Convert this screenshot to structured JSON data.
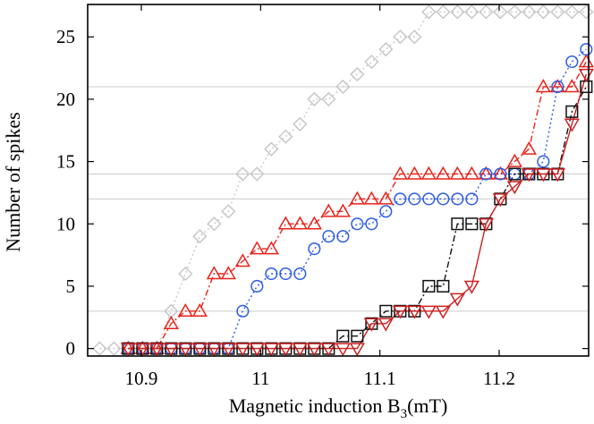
{
  "chart_data": {
    "type": "line",
    "title": "",
    "xlabel": "Magnetic induction B",
    "xlabel_sub": "3",
    "xlabel_unit": "(mT)",
    "ylabel": "Number of spikes",
    "xlim": [
      10.855,
      11.275
    ],
    "ylim": [
      -0.6,
      27.6
    ],
    "xticks": [
      10.9,
      11,
      11.1,
      11.2
    ],
    "xtick_labels": [
      "10.9",
      "11",
      "11.1",
      "11.2"
    ],
    "yticks": [
      0,
      5,
      10,
      15,
      20,
      25
    ],
    "ytick_labels": [
      "0",
      "5",
      "10",
      "15",
      "20",
      "25"
    ],
    "hgrid": [
      3,
      12,
      14,
      21
    ],
    "series": [
      {
        "name": "diamonds",
        "marker": "diamond",
        "color": "#c8c8c8",
        "dash": "2,3",
        "x": [
          10.865,
          10.877,
          10.889,
          10.901,
          10.913,
          10.925,
          10.937,
          10.949,
          10.961,
          10.973,
          10.985,
          10.997,
          11.009,
          11.021,
          11.033,
          11.045,
          11.057,
          11.069,
          11.081,
          11.093,
          11.105,
          11.117,
          11.129,
          11.141,
          11.153,
          11.165,
          11.177,
          11.189,
          11.201,
          11.213,
          11.225,
          11.237,
          11.249,
          11.261,
          11.273
        ],
        "y": [
          0,
          0,
          0,
          0,
          0,
          3,
          6,
          9,
          10,
          11,
          14,
          14,
          16,
          17,
          18,
          20,
          20,
          21,
          22,
          23,
          24,
          25,
          25,
          27,
          27,
          27,
          27,
          27,
          27,
          27,
          27,
          27,
          27,
          27,
          27
        ]
      },
      {
        "name": "up-triangles",
        "marker": "triangle-up",
        "color": "#e8231a",
        "dash": "7,3,2,3",
        "x": [
          10.889,
          10.901,
          10.913,
          10.925,
          10.937,
          10.949,
          10.961,
          10.973,
          10.985,
          10.997,
          11.009,
          11.021,
          11.033,
          11.045,
          11.057,
          11.069,
          11.081,
          11.093,
          11.105,
          11.117,
          11.129,
          11.141,
          11.153,
          11.165,
          11.177,
          11.189,
          11.201,
          11.213,
          11.225,
          11.237,
          11.249,
          11.261,
          11.273
        ],
        "y": [
          0,
          0,
          0,
          2,
          3,
          3,
          6,
          6,
          7,
          8,
          8,
          10,
          10,
          10,
          11,
          11,
          12,
          12,
          12,
          14,
          14,
          14,
          14,
          14,
          14,
          14,
          14,
          15,
          16,
          21,
          21,
          21,
          23
        ]
      },
      {
        "name": "circles",
        "marker": "circle",
        "color": "#2d5be3",
        "dash": "2,3",
        "x": [
          10.889,
          10.901,
          10.913,
          10.925,
          10.937,
          10.949,
          10.961,
          10.973,
          10.985,
          10.997,
          11.009,
          11.021,
          11.033,
          11.045,
          11.057,
          11.069,
          11.081,
          11.093,
          11.105,
          11.117,
          11.129,
          11.141,
          11.153,
          11.165,
          11.177,
          11.189,
          11.201,
          11.213,
          11.225,
          11.237,
          11.249,
          11.261,
          11.273
        ],
        "y": [
          0,
          0,
          0,
          0,
          0,
          0,
          0,
          0,
          3,
          5,
          6,
          6,
          6,
          8,
          9,
          9,
          10,
          10,
          11,
          12,
          12,
          12,
          12,
          12,
          12,
          14,
          14,
          14,
          14,
          15,
          21,
          23,
          24
        ]
      },
      {
        "name": "squares",
        "marker": "square",
        "color": "#111111",
        "dash": "7,3,2,3",
        "x": [
          10.889,
          10.901,
          10.913,
          10.925,
          10.937,
          10.949,
          10.961,
          10.973,
          10.985,
          10.997,
          11.009,
          11.021,
          11.033,
          11.045,
          11.057,
          11.069,
          11.081,
          11.093,
          11.105,
          11.117,
          11.129,
          11.141,
          11.153,
          11.165,
          11.177,
          11.189,
          11.201,
          11.213,
          11.225,
          11.237,
          11.249,
          11.261,
          11.273
        ],
        "y": [
          0,
          0,
          0,
          0,
          0,
          0,
          0,
          0,
          0,
          0,
          0,
          0,
          0,
          0,
          0,
          1,
          1,
          2,
          3,
          3,
          3,
          5,
          5,
          10,
          10,
          10,
          12,
          14,
          14,
          14,
          14,
          19,
          21
        ]
      },
      {
        "name": "down-triangles",
        "marker": "triangle-down",
        "color": "#cc2020",
        "dash": "",
        "x": [
          10.889,
          10.901,
          10.913,
          10.925,
          10.937,
          10.949,
          10.961,
          10.973,
          10.985,
          10.997,
          11.009,
          11.021,
          11.033,
          11.045,
          11.057,
          11.069,
          11.081,
          11.093,
          11.105,
          11.117,
          11.129,
          11.141,
          11.153,
          11.165,
          11.177,
          11.189,
          11.201,
          11.213,
          11.225,
          11.237,
          11.249,
          11.261,
          11.273
        ],
        "y": [
          0,
          0,
          0,
          0,
          0,
          0,
          0,
          0,
          0,
          0,
          0,
          0,
          0,
          0,
          0,
          0,
          0,
          2,
          2,
          3,
          3,
          3,
          3,
          4,
          5,
          10,
          12,
          13,
          14,
          14,
          14,
          18,
          22
        ]
      }
    ]
  }
}
